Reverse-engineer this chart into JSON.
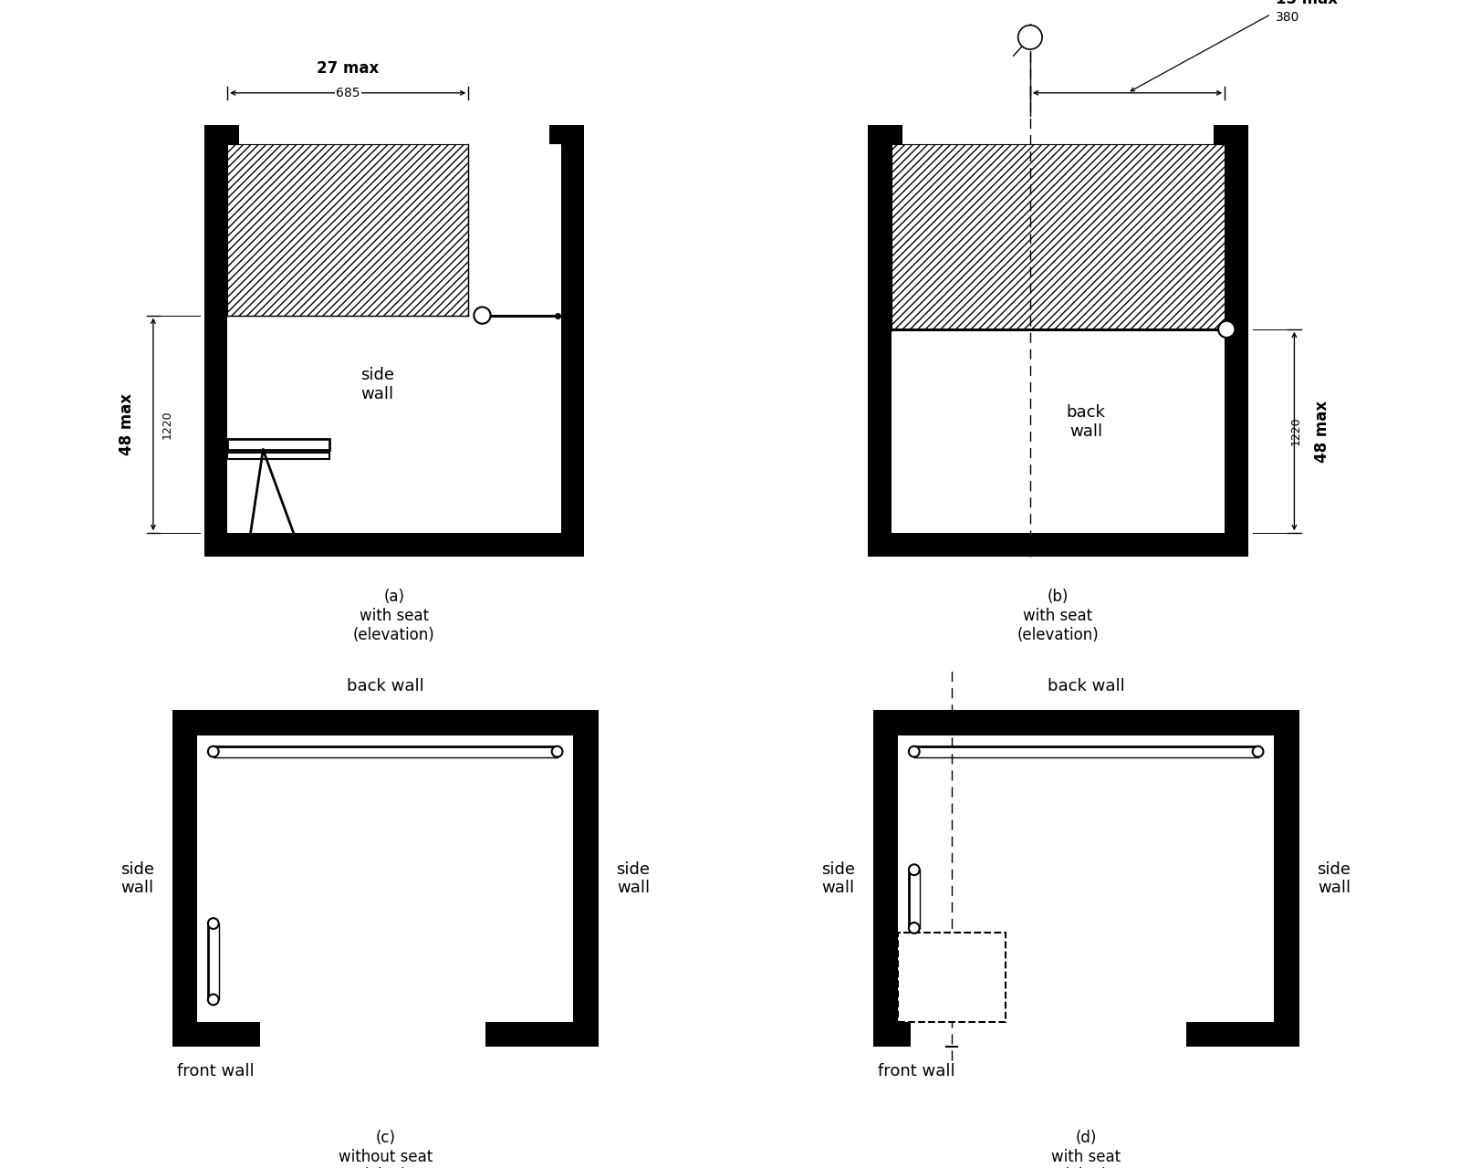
{
  "bg_color": "#ffffff",
  "line_color": "#000000",
  "fig_labels": {
    "a": "(a)\nwith seat\n(elevation)",
    "b": "(b)\nwith seat\n(elevation)",
    "c": "(c)\nwithout seat\n(plan)",
    "d": "(d)\nwith seat\n(plan)"
  }
}
